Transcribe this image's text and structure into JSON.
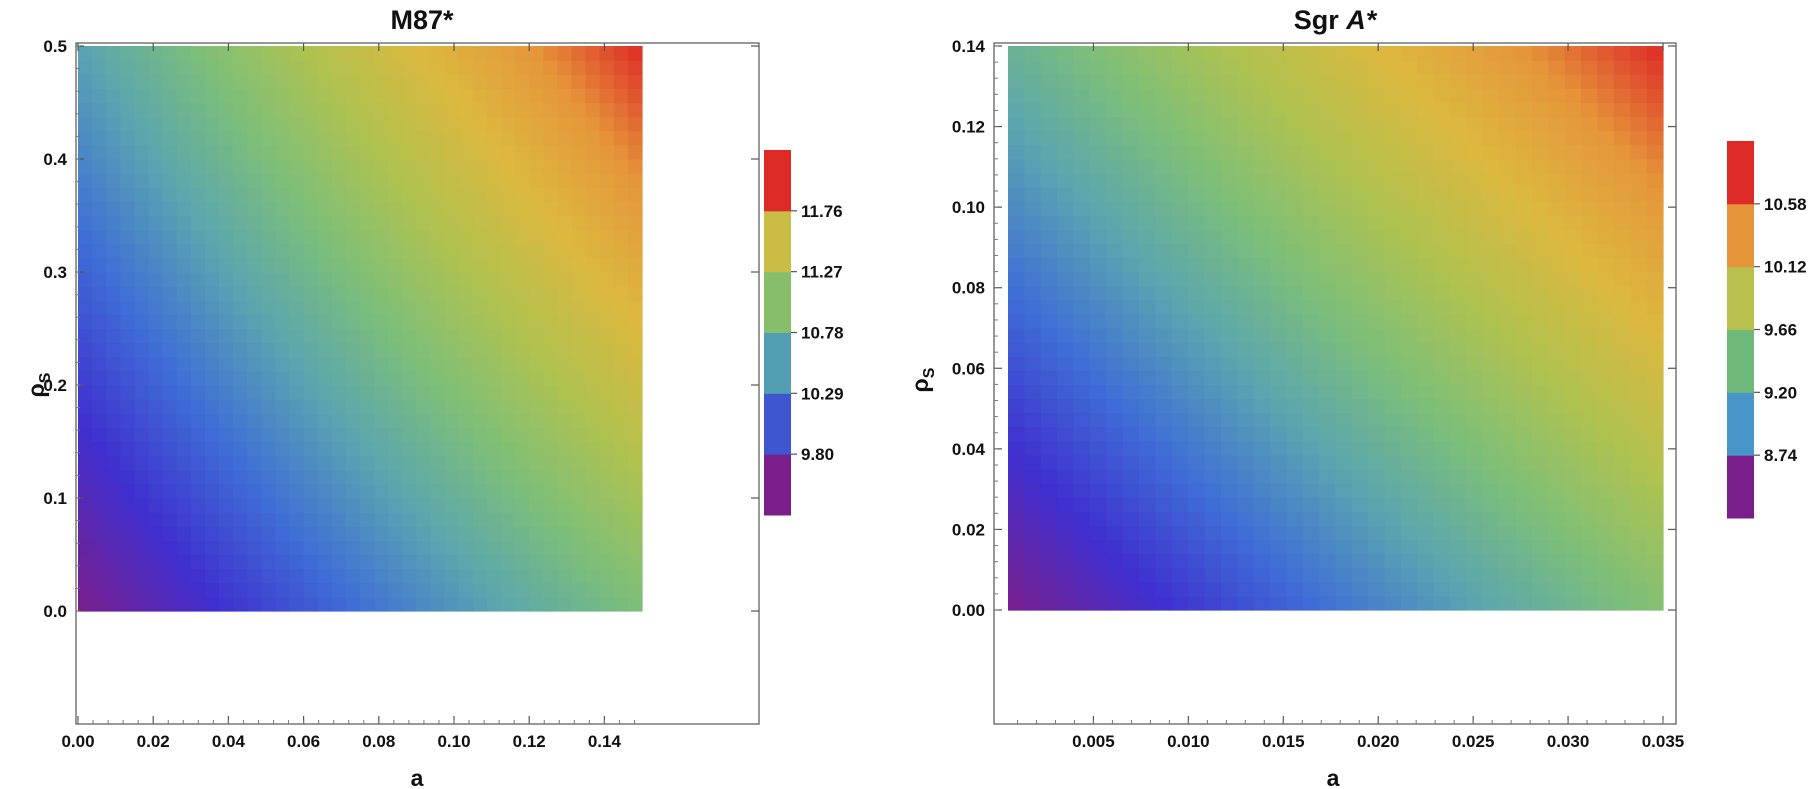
{
  "chart_data": [
    {
      "type": "heatmap",
      "title": "M87*",
      "xlabel": "a",
      "ylabel": "ρ",
      "ylabel_subscript": "S",
      "xlim": [
        0,
        0.15
      ],
      "ylim": [
        0,
        0.5
      ],
      "x_ticks": [
        0.0,
        0.02,
        0.04,
        0.06,
        0.08,
        0.1,
        0.12,
        0.14
      ],
      "x_tick_labels": [
        "0.00",
        "0.02",
        "0.04",
        "0.06",
        "0.08",
        "0.10",
        "0.12",
        "0.14"
      ],
      "y_ticks": [
        0.0,
        0.1,
        0.2,
        0.3,
        0.4,
        0.5
      ],
      "y_tick_labels": [
        "0.0",
        "0.1",
        "0.2",
        "0.3",
        "0.4",
        "0.5"
      ],
      "corner_values": {
        "bottom_left": 9.3,
        "bottom_right": 10.8,
        "top_left": 10.4,
        "top_right": 12.3
      },
      "colorbar": {
        "levels": [
          "9.80",
          "10.29",
          "10.78",
          "11.27",
          "11.76"
        ],
        "colors": [
          "#7a1e8a",
          "#3f56d1",
          "#529fb4",
          "#88be6b",
          "#c9bd45",
          "#dd2a26"
        ]
      }
    },
    {
      "type": "heatmap",
      "title_prefix": "Sgr ",
      "title_italic": "A*",
      "xlabel": "a",
      "ylabel": "ρ",
      "ylabel_subscript": "S",
      "xlim": [
        0.0005,
        0.035
      ],
      "ylim": [
        0,
        0.14
      ],
      "x_ticks": [
        0.005,
        0.01,
        0.015,
        0.02,
        0.025,
        0.03,
        0.035
      ],
      "x_tick_labels": [
        "0.005",
        "0.010",
        "0.015",
        "0.020",
        "0.025",
        "0.030",
        "0.035"
      ],
      "y_ticks": [
        0.0,
        0.02,
        0.04,
        0.06,
        0.08,
        0.1,
        0.12,
        0.14
      ],
      "y_tick_labels": [
        "0.00",
        "0.02",
        "0.04",
        "0.06",
        "0.08",
        "0.10",
        "0.12",
        "0.14"
      ],
      "corner_values": {
        "bottom_left": 8.2,
        "bottom_right": 9.7,
        "top_left": 9.45,
        "top_right": 11.1
      },
      "colorbar": {
        "levels": [
          "8.74",
          "9.20",
          "9.66",
          "10.12",
          "10.58"
        ],
        "colors": [
          "#7a1e8a",
          "#4896c8",
          "#6eb87a",
          "#b8c04e",
          "#e5963a",
          "#dd2a26"
        ]
      }
    }
  ],
  "gradient_palette": [
    "#7a1e8a",
    "#3f2fcf",
    "#3f6fd6",
    "#5aa5b0",
    "#7dbf78",
    "#b0c24f",
    "#dcb83f",
    "#e5963a",
    "#dd2a26"
  ]
}
